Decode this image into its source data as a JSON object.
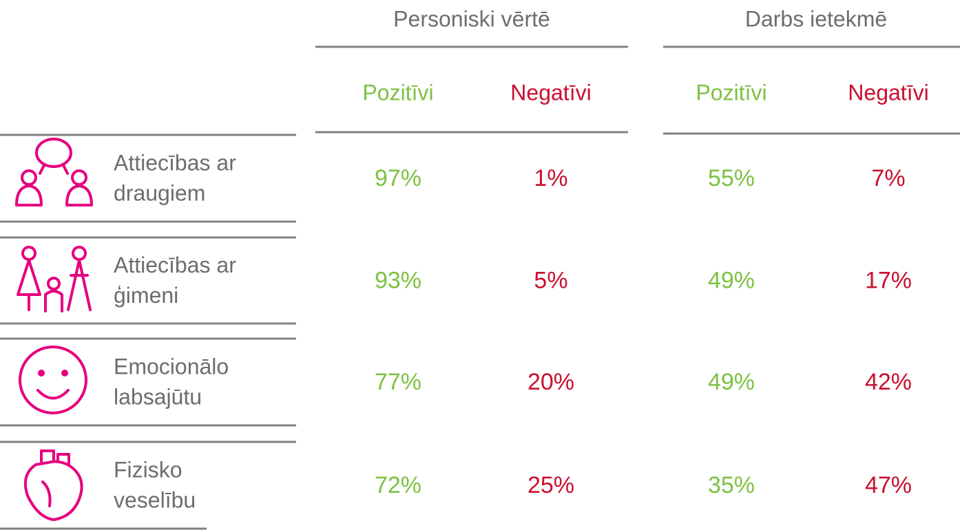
{
  "header": {
    "groups": [
      "Personiski vērtē",
      "Darbs ietekmē"
    ],
    "columns": [
      "Pozitīvi",
      "Negatīvi",
      "Pozitīvi",
      "Negatīvi"
    ]
  },
  "rows": [
    {
      "label": [
        "Attiecības ar",
        "draugiem"
      ],
      "values": [
        "97%",
        "1%",
        "55%",
        "7%"
      ]
    },
    {
      "label": [
        "Attiecības ar",
        "ģimeni"
      ],
      "values": [
        "93%",
        "5%",
        "49%",
        "17%"
      ]
    },
    {
      "label": [
        "Emocionālo",
        "labsajūtu"
      ],
      "values": [
        "77%",
        "20%",
        "49%",
        "42%"
      ]
    },
    {
      "label": [
        "Fizisko",
        "veselību"
      ],
      "values": [
        "72%",
        "25%",
        "35%",
        "47%"
      ]
    }
  ]
}
